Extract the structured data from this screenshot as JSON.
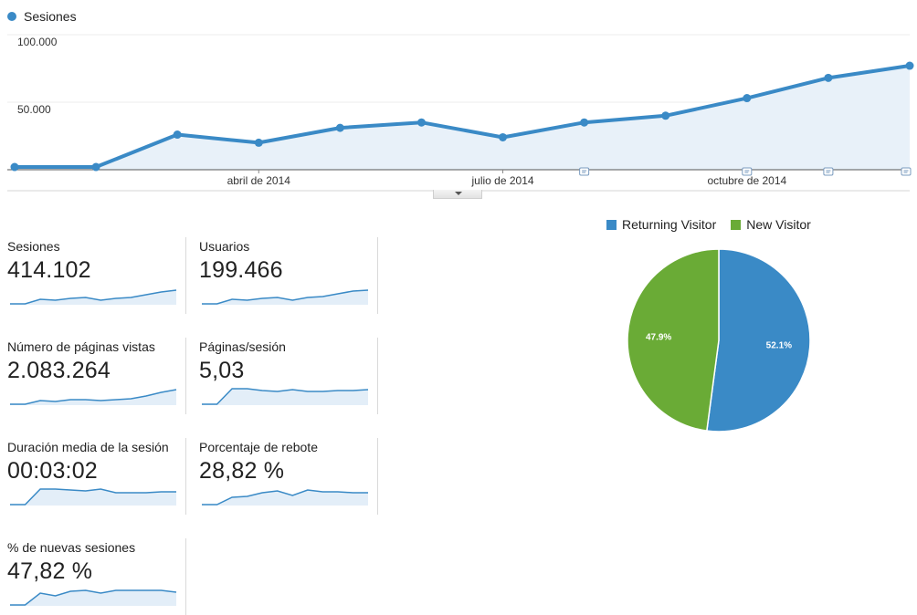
{
  "line_legend": {
    "label": "Sesiones",
    "color": "#3a8ac6"
  },
  "chart_data": [
    {
      "type": "area",
      "series": [
        {
          "name": "Sesiones",
          "values": [
            2000,
            2000,
            26000,
            20000,
            31000,
            35000,
            24000,
            35000,
            40000,
            53000,
            68000,
            77000
          ]
        }
      ],
      "x": [
        "2014-01",
        "2014-02",
        "2014-03",
        "2014-04",
        "2014-05",
        "2014-06",
        "2014-07",
        "2014-08",
        "2014-09",
        "2014-10",
        "2014-11",
        "2014-12"
      ],
      "x_tick_labels": [
        {
          "at": "2014-04",
          "label": "abril de 2014"
        },
        {
          "at": "2014-07",
          "label": "julio de 2014"
        },
        {
          "at": "2014-10",
          "label": "octubre de 2014"
        }
      ],
      "y_tick_labels": [
        "100.000",
        "50.000"
      ],
      "ylim": [
        0,
        100000
      ],
      "annotation_markers_at": [
        "2014-08",
        "2014-10",
        "2014-11",
        "2014-12"
      ],
      "line_color": "#3a8ac6",
      "fill_color": "#e8f1f9",
      "grid": true
    },
    {
      "type": "pie",
      "categories": [
        "Returning Visitor",
        "New Visitor"
      ],
      "values": [
        52.1,
        47.9
      ],
      "labels": [
        "52.1%",
        "47.9%"
      ],
      "colors": [
        "#3a8ac6",
        "#6aab36"
      ],
      "legend": "top"
    }
  ],
  "metrics": [
    {
      "label": "Sesiones",
      "value": "414.102",
      "spark": [
        1,
        1,
        6,
        5,
        7,
        8,
        5,
        7,
        8,
        11,
        14,
        16
      ]
    },
    {
      "label": "Usuarios",
      "value": "199.466",
      "spark": [
        1,
        1,
        6,
        5,
        7,
        8,
        5,
        8,
        9,
        12,
        15,
        16
      ]
    },
    {
      "label": "Número de páginas vistas",
      "value": "2.083.264",
      "spark": [
        1,
        1,
        5,
        4,
        6,
        6,
        5,
        6,
        7,
        10,
        14,
        17
      ]
    },
    {
      "label": "Páginas/sesión",
      "value": "5,03",
      "spark": [
        1,
        1,
        18,
        18,
        16,
        15,
        17,
        15,
        15,
        16,
        16,
        17
      ]
    },
    {
      "label": "Duración media de la sesión",
      "value": "00:03:02",
      "spark": [
        1,
        1,
        18,
        18,
        17,
        16,
        18,
        14,
        14,
        14,
        15,
        15
      ]
    },
    {
      "label": "Porcentaje de rebote",
      "value": "28,82 %",
      "spark": [
        1,
        1,
        9,
        10,
        14,
        16,
        11,
        17,
        15,
        15,
        14,
        14
      ]
    },
    {
      "label": "% de nuevas sesiones",
      "value": "47,82 %",
      "spark": [
        1,
        1,
        14,
        11,
        16,
        17,
        14,
        17,
        17,
        17,
        17,
        15
      ]
    }
  ]
}
